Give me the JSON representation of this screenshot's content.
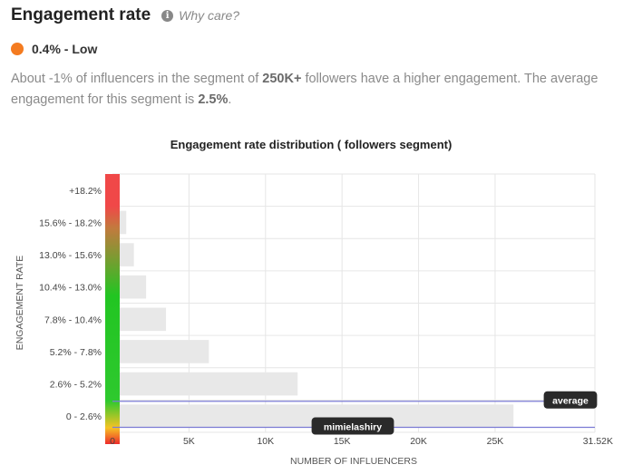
{
  "header": {
    "title": "Engagement rate",
    "info_icon": "info-icon",
    "why_link": "Why care?"
  },
  "status": {
    "value": "0.4% - Low",
    "color": "#f47b20"
  },
  "description": {
    "part1": "About -1% of influencers in the segment of ",
    "segment": "250K+",
    "part2": " followers have a higher engagement. The average engagement for this segment is ",
    "average": "2.5%",
    "part3": "."
  },
  "chart_data": {
    "type": "bar",
    "orientation": "horizontal",
    "title": "Engagement rate distribution ( followers segment)",
    "xlabel": "NUMBER OF INFLUENCERS",
    "ylabel": "ENGAGEMENT RATE",
    "categories": [
      "0 - 2.6%",
      "2.6% - 5.2%",
      "5.2% - 7.8%",
      "7.8% - 10.4%",
      "10.4% - 13.0%",
      "13.0% - 15.6%",
      "15.6% - 18.2%",
      "+18.2%"
    ],
    "values": [
      26200,
      12100,
      6300,
      3500,
      2200,
      1400,
      900,
      0
    ],
    "xlim": [
      0,
      31520
    ],
    "xticks": [
      0,
      5000,
      10000,
      15000,
      20000,
      25000,
      31520
    ],
    "xtick_labels": [
      "0",
      "5K",
      "10K",
      "15K",
      "20K",
      "25K",
      "31.52K"
    ],
    "markers": [
      {
        "label": "average",
        "rate": 2.5
      },
      {
        "label": "mimielashiry",
        "rate": 0.4
      }
    ],
    "colors": {
      "bar": "#e8e8e8",
      "marker_line": "#7b7bd4",
      "grid": "#e6e6e6",
      "label_bg": "#2a2a2a"
    }
  }
}
